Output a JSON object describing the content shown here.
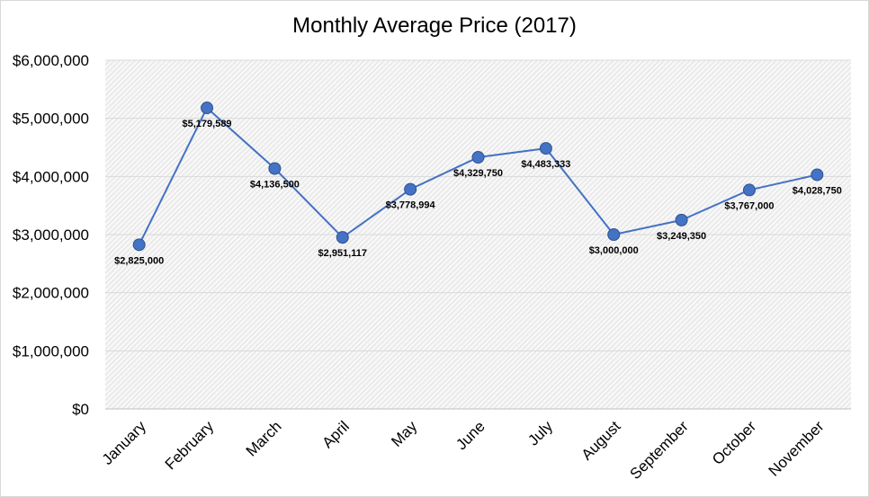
{
  "chart_data": {
    "type": "line",
    "title": "Monthly Average Price (2017)",
    "xlabel": "",
    "ylabel": "",
    "categories": [
      "January",
      "February",
      "March",
      "April",
      "May",
      "June",
      "July",
      "August",
      "September",
      "October",
      "November"
    ],
    "series": [
      {
        "values": [
          2825000,
          5179589,
          4136500,
          2951117,
          3778994,
          4329750,
          4483333,
          3000000,
          3249350,
          3767000,
          4028750
        ],
        "labels": [
          "$2,825,000",
          "$5,179,589",
          "$4,136,500",
          "$2,951,117",
          "$3,778,994",
          "$4,329,750",
          "$4,483,333",
          "$3,000,000",
          "$3,249,350",
          "$3,767,000",
          "$4,028,750"
        ],
        "color": "#4472c4"
      }
    ],
    "ylim": [
      0,
      6000000
    ],
    "yticks": [
      0,
      1000000,
      2000000,
      3000000,
      4000000,
      5000000,
      6000000
    ],
    "ytick_labels": [
      "$0",
      "$1,000,000",
      "$2,000,000",
      "$3,000,000",
      "$4,000,000",
      "$5,000,000",
      "$6,000,000"
    ],
    "grid": true,
    "legend": "none",
    "plot_background": "hatched gray"
  }
}
